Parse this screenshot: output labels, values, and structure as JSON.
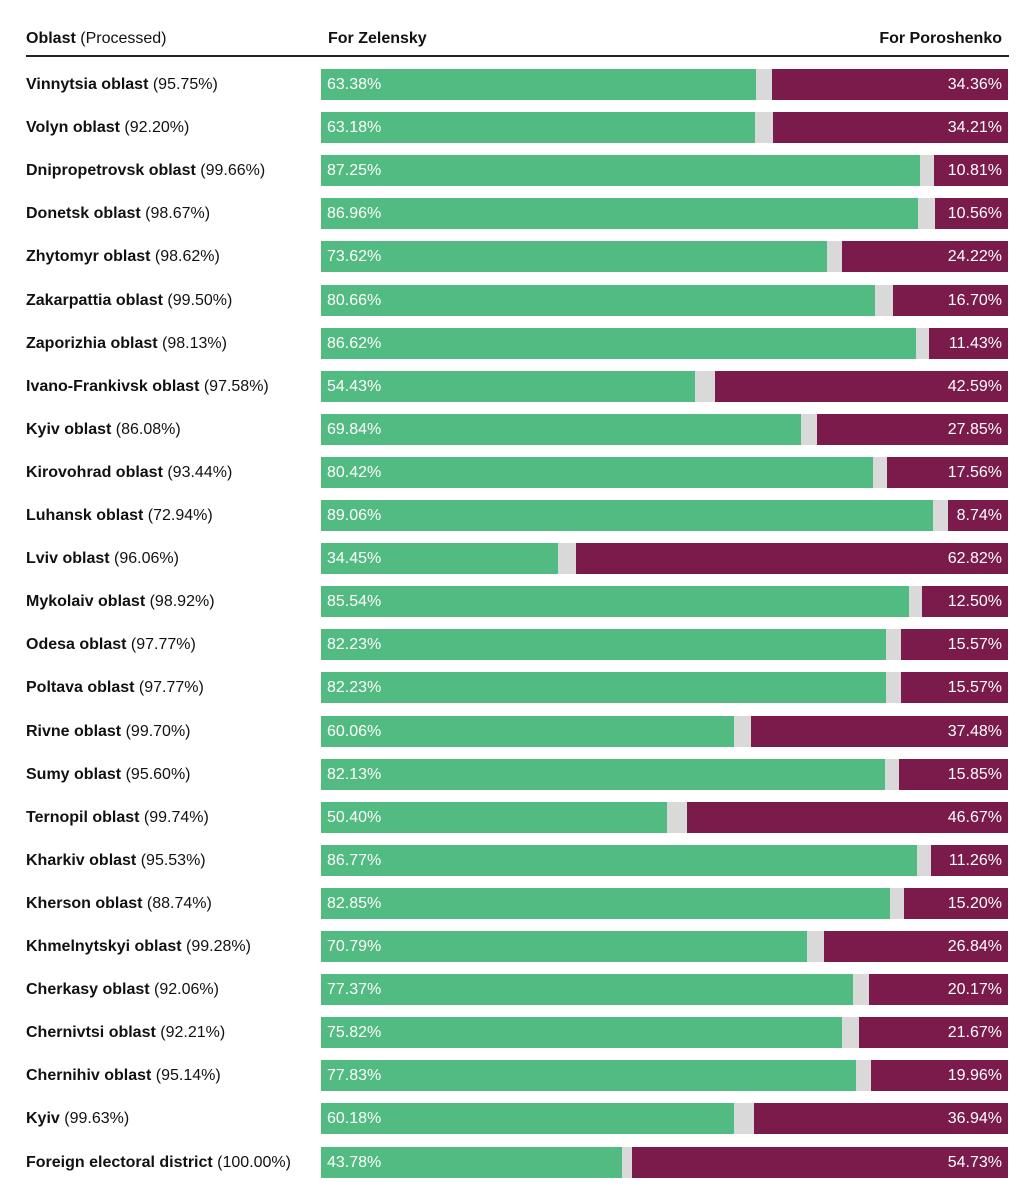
{
  "header": {
    "oblast_label": "Oblast",
    "processed_label": "(Processed)",
    "zelensky_label": "For Zelensky",
    "poroshenko_label": "For Poroshenko"
  },
  "colors": {
    "zelensky": "#52bb81",
    "poroshenko": "#7a1b4b",
    "other": "#d9d9d9"
  },
  "chart_data": {
    "type": "bar",
    "orientation": "horizontal-stacked",
    "xlim": [
      0,
      100
    ],
    "categories": [
      "Vinnytsia oblast",
      "Volyn oblast",
      "Dnipropetrovsk oblast",
      "Donetsk oblast",
      "Zhytomyr oblast",
      "Zakarpattia oblast",
      "Zaporizhia oblast",
      "Ivano-Frankivsk oblast",
      "Kyiv oblast",
      "Kirovohrad oblast",
      "Luhansk oblast",
      "Lviv oblast",
      "Mykolaiv oblast",
      "Odesa oblast",
      "Poltava oblast",
      "Rivne oblast",
      "Sumy oblast",
      "Ternopil oblast",
      "Kharkiv oblast",
      "Kherson oblast",
      "Khmelnytskyi oblast",
      "Cherkasy oblast",
      "Chernivtsi oblast",
      "Chernihiv oblast",
      "Kyiv",
      "Foreign electoral district"
    ],
    "processed": [
      "(95.75%)",
      "(92.20%)",
      "(99.66%)",
      "(98.67%)",
      "(98.62%)",
      "(99.50%)",
      "(98.13%)",
      "(97.58%)",
      "(86.08%)",
      "(93.44%)",
      "(72.94%)",
      "(96.06%)",
      "(98.92%)",
      "(97.77%)",
      "(97.77%)",
      "(99.70%)",
      "(95.60%)",
      "(99.74%)",
      "(95.53%)",
      "(88.74%)",
      "(99.28%)",
      "(92.06%)",
      "(92.21%)",
      "(95.14%)",
      "(99.63%)",
      "(100.00%)"
    ],
    "series": [
      {
        "name": "For Zelensky",
        "values": [
          63.38,
          63.18,
          87.25,
          86.96,
          73.62,
          80.66,
          86.62,
          54.43,
          69.84,
          80.42,
          89.06,
          34.45,
          85.54,
          82.23,
          82.23,
          60.06,
          82.13,
          50.4,
          86.77,
          82.85,
          70.79,
          77.37,
          75.82,
          77.83,
          60.18,
          43.78
        ],
        "labels": [
          "63.38%",
          "63.18%",
          "87.25%",
          "86.96%",
          "73.62%",
          "80.66%",
          "86.62%",
          "54.43%",
          "69.84%",
          "80.42%",
          "89.06%",
          "34.45%",
          "85.54%",
          "82.23%",
          "82.23%",
          "60.06%",
          "82.13%",
          "50.40%",
          "86.77%",
          "82.85%",
          "70.79%",
          "77.37%",
          "75.82%",
          "77.83%",
          "60.18%",
          "43.78%"
        ]
      },
      {
        "name": "For Poroshenko",
        "values": [
          34.36,
          34.21,
          10.81,
          10.56,
          24.22,
          16.7,
          11.43,
          42.59,
          27.85,
          17.56,
          8.74,
          62.82,
          12.5,
          15.57,
          15.57,
          37.48,
          15.85,
          46.67,
          11.26,
          15.2,
          26.84,
          20.17,
          21.67,
          19.96,
          36.94,
          54.73
        ],
        "labels": [
          "34.36%",
          "34.21%",
          "10.81%",
          "10.56%",
          "24.22%",
          "16.70%",
          "11.43%",
          "42.59%",
          "27.85%",
          "17.56%",
          "8.74%",
          "62.82%",
          "12.50%",
          "15.57%",
          "15.57%",
          "37.48%",
          "15.85%",
          "46.67%",
          "11.26%",
          "15.20%",
          "26.84%",
          "20.17%",
          "21.67%",
          "19.96%",
          "36.94%",
          "54.73%"
        ]
      }
    ]
  }
}
